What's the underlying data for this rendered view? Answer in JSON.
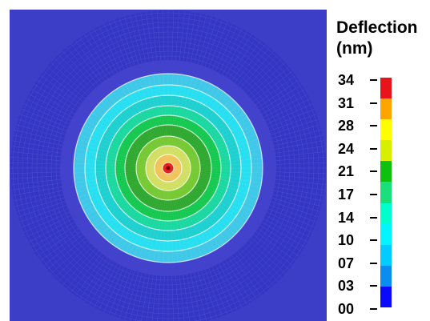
{
  "legend": {
    "title_line1": "Deflection",
    "title_line2": "(nm)",
    "ticks": [
      "34",
      "31",
      "28",
      "24",
      "21",
      "17",
      "14",
      "10",
      "07",
      "03",
      "00"
    ],
    "bands": [
      "#e8141c",
      "#ffa500",
      "#ffff00",
      "#d9ef00",
      "#0ec10e",
      "#19e07a",
      "#00ffcc",
      "#00f5ff",
      "#00ccff",
      "#0a8df0",
      "#0a0aff"
    ]
  },
  "contour": {
    "background_color": "#3d3ec8",
    "outer_annulus_color": "#3436c4",
    "gap_color": "#4242cc",
    "level_colors": [
      "#40c8e8",
      "#27dff0",
      "#1ed0d0",
      "#1ad8a0",
      "#14c850",
      "#2ea82e",
      "#74c830",
      "#d0de60",
      "#f0c050",
      "#e82020"
    ]
  }
}
